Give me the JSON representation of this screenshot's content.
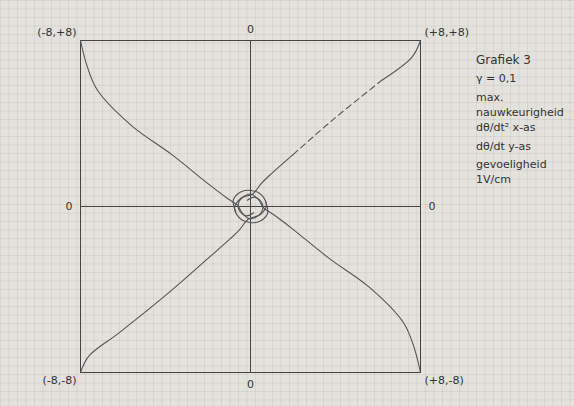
{
  "chart_data": {
    "type": "line",
    "title": "Grafiek 3",
    "notes": [
      "γ = 0,1",
      "max. nauwkeurigheid dθ/dt² x-as",
      "dθ/dt y-as",
      "gevoeligheid 1V/cm"
    ],
    "xlim": [
      -8,
      8
    ],
    "ylim": [
      -8,
      8
    ],
    "xticks": [
      0
    ],
    "yticks": [
      0
    ],
    "grid": true,
    "annotations": [
      {
        "text": "(-8,+8)",
        "x": -8,
        "y": 8
      },
      {
        "text": "(+8,+8)",
        "x": 8,
        "y": 8
      },
      {
        "text": "(-8,-8)",
        "x": -8,
        "y": -8
      },
      {
        "text": "(+8,-8)",
        "x": 8,
        "y": -8
      }
    ],
    "series": [
      {
        "color": "#555555",
        "line_style": "solid",
        "x": [
          -8,
          -7.7,
          -7.2,
          -5.6,
          -3.7,
          -2,
          -1.1,
          -0.6,
          -0.4,
          0,
          0.5,
          0.55,
          0.2,
          -0.15
        ],
        "values": [
          8,
          6.8,
          5.6,
          3.9,
          2.5,
          1.1,
          0.4,
          0.05,
          -0.3,
          -0.6,
          -0.3,
          0.15,
          0.45,
          0.3
        ]
      },
      {
        "color": "#555555",
        "line_style": "solid",
        "x": [
          8,
          7.7,
          7.2,
          5.6,
          3.7,
          2,
          1.1,
          0.6,
          0.4,
          0,
          -0.5,
          -0.55,
          -0.2,
          0.15
        ],
        "values": [
          -8,
          -6.8,
          -5.6,
          -3.9,
          -2.5,
          -1.1,
          -0.4,
          -0.05,
          0.3,
          0.6,
          0.3,
          -0.15,
          -0.45,
          -0.3
        ]
      },
      {
        "color": "#555555",
        "line_style": "solid",
        "x": [
          8,
          7.6,
          6.2
        ],
        "values": [
          8,
          7.2,
          6.1
        ]
      },
      {
        "color": "#555555",
        "line_style": "dashed",
        "x": [
          6.2,
          3.9,
          2
        ],
        "values": [
          6.1,
          4.2,
          2.5
        ]
      },
      {
        "color": "#555555",
        "line_style": "solid",
        "x": [
          2,
          0.95,
          0.5,
          0.1,
          -0.45,
          -0.75,
          -0.4,
          0.35,
          0.8,
          0.7
        ],
        "values": [
          2.5,
          1.55,
          1.1,
          0.6,
          0.4,
          -0.1,
          -0.65,
          -0.75,
          -0.35,
          0.25
        ]
      },
      {
        "color": "#555555",
        "line_style": "solid",
        "x": [
          -8,
          -7.6,
          -6.2,
          -3.9,
          -2,
          -0.95,
          -0.5,
          -0.1,
          0.45,
          0.75,
          0.4,
          -0.35,
          -0.8,
          -0.7
        ],
        "values": [
          -8,
          -7.2,
          -6.1,
          -4.2,
          -2.5,
          -1.55,
          -1.1,
          -0.6,
          -0.4,
          0.1,
          0.65,
          0.75,
          0.35,
          -0.25
        ]
      }
    ]
  }
}
